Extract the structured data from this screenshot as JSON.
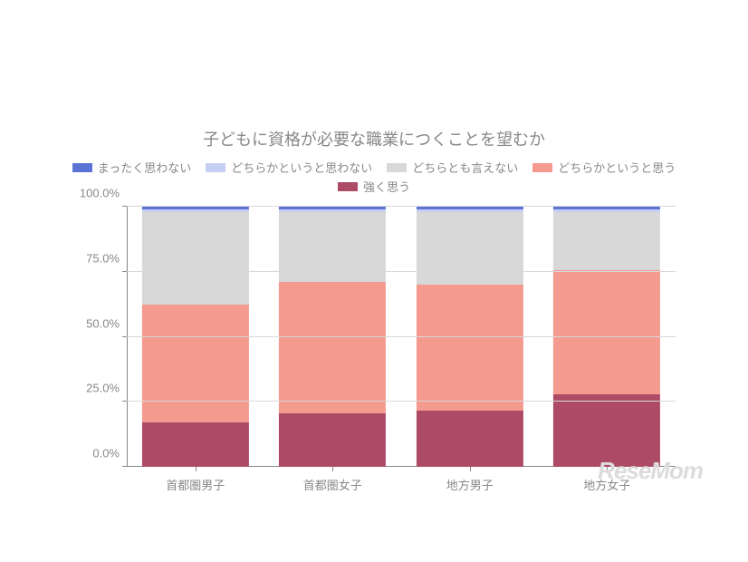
{
  "chart": {
    "type": "stacked-bar",
    "title": "子どもに資格が必要な職業につくことを望むか",
    "title_fontsize": 18,
    "title_color": "#888888",
    "background_color": "#ffffff",
    "grid_color": "#d8d8d8",
    "axis_color": "#888888",
    "label_fontsize": 13,
    "legend_fontsize": 13,
    "categories": [
      "首都圏男子",
      "首都圏女子",
      "地方男子",
      "地方女子"
    ],
    "series": [
      {
        "name": "強く思う",
        "color": "#ad4b66",
        "values": [
          17.0,
          20.5,
          21.5,
          28.0
        ]
      },
      {
        "name": "どちらかというと思う",
        "color": "#f59a8f",
        "values": [
          45.5,
          50.5,
          48.5,
          47.5
        ]
      },
      {
        "name": "どちらとも言えない",
        "color": "#d8d8d8",
        "values": [
          35.5,
          27.0,
          28.0,
          22.5
        ]
      },
      {
        "name": "どちらかというと思わない",
        "color": "#c6cff2",
        "values": [
          1.0,
          1.0,
          1.0,
          1.0
        ]
      },
      {
        "name": "まったく思わない",
        "color": "#5b73d4",
        "values": [
          1.0,
          1.0,
          1.0,
          1.0
        ]
      }
    ],
    "legend_order": [
      4,
      3,
      2,
      1,
      0
    ],
    "ylim": [
      0,
      100
    ],
    "ytick_step": 25,
    "ytick_labels": [
      "0.0%",
      "25.0%",
      "50.0%",
      "75.0%",
      "100.0%"
    ],
    "bar_width_pct": 78
  },
  "watermark": {
    "text": "ReseMom",
    "color": "#dcdcdc",
    "fontsize": 26
  }
}
